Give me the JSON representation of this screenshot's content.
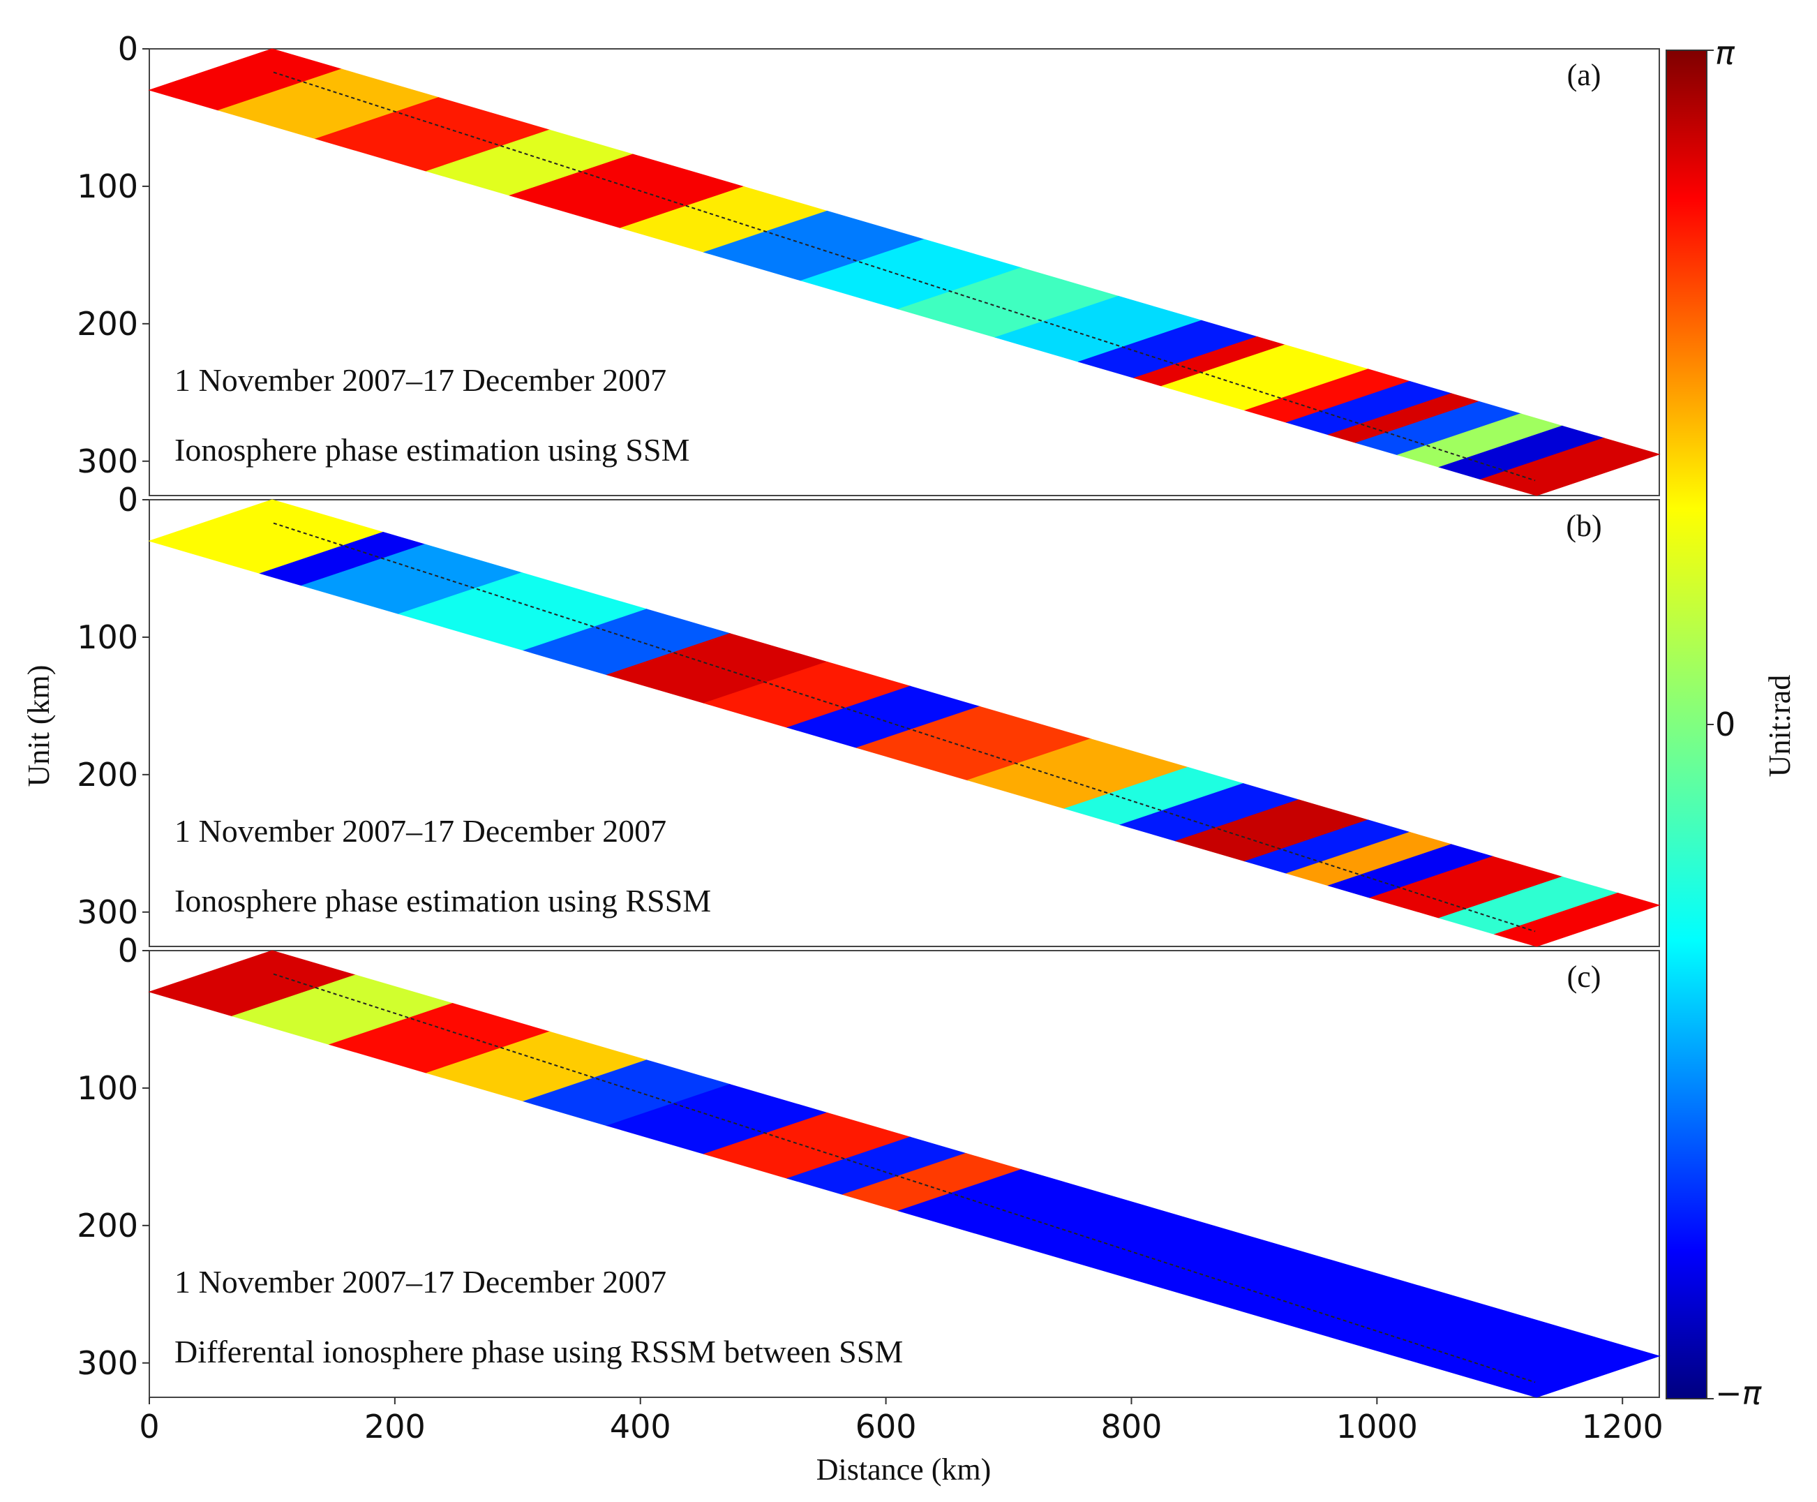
{
  "chart_data": {
    "type": "heatmap",
    "xlabel": "Distance (km)",
    "ylabel": "Unit (km)",
    "xlim": [
      0,
      1230
    ],
    "ylim": [
      0,
      325
    ],
    "x_ticks": [
      "0",
      "200",
      "400",
      "600",
      "800",
      "1000",
      "1200"
    ],
    "y_ticks": [
      "0",
      "100",
      "200",
      "300"
    ],
    "colorbar": {
      "label": "Unit:rad",
      "ticks": [
        "π",
        "0",
        "−π"
      ],
      "range": [
        -3.14159,
        3.14159
      ],
      "colormap": "jet"
    },
    "panels": [
      {
        "id": "a",
        "tag": "(a)",
        "date_text": "1 November 2007–17 December 2007",
        "caption": "Ionosphere phase estimation using SSM",
        "swath_corners_km": [
          [
            100,
            0
          ],
          [
            1230,
            295
          ],
          [
            1130,
            325
          ],
          [
            0,
            30
          ]
        ],
        "phase_segments": [
          {
            "from": 0.0,
            "to": 0.05,
            "value": 2.4
          },
          {
            "from": 0.05,
            "to": 0.12,
            "value": 1.2
          },
          {
            "from": 0.12,
            "to": 0.2,
            "value": 2.2
          },
          {
            "from": 0.2,
            "to": 0.26,
            "value": 0.6
          },
          {
            "from": 0.26,
            "to": 0.34,
            "value": 2.4
          },
          {
            "from": 0.34,
            "to": 0.4,
            "value": 0.9
          },
          {
            "from": 0.4,
            "to": 0.47,
            "value": -1.6
          },
          {
            "from": 0.47,
            "to": 0.54,
            "value": -0.9
          },
          {
            "from": 0.54,
            "to": 0.61,
            "value": -0.4
          },
          {
            "from": 0.61,
            "to": 0.67,
            "value": -1.0
          },
          {
            "from": 0.67,
            "to": 0.71,
            "value": -2.2
          },
          {
            "from": 0.71,
            "to": 0.73,
            "value": 2.5
          },
          {
            "from": 0.73,
            "to": 0.79,
            "value": 0.8
          },
          {
            "from": 0.79,
            "to": 0.82,
            "value": 2.3
          },
          {
            "from": 0.82,
            "to": 0.85,
            "value": -2.2
          },
          {
            "from": 0.85,
            "to": 0.87,
            "value": 2.6
          },
          {
            "from": 0.87,
            "to": 0.9,
            "value": -1.9
          },
          {
            "from": 0.9,
            "to": 0.93,
            "value": 0.2
          },
          {
            "from": 0.93,
            "to": 0.96,
            "value": -2.6
          },
          {
            "from": 0.96,
            "to": 1.0,
            "value": 2.6
          }
        ]
      },
      {
        "id": "b",
        "tag": "(b)",
        "date_text": "1 November 2007–17 December 2007",
        "caption": "Ionosphere phase estimation using RSSM",
        "swath_corners_km": [
          [
            100,
            0
          ],
          [
            1230,
            295
          ],
          [
            1130,
            325
          ],
          [
            0,
            30
          ]
        ],
        "phase_segments": [
          {
            "from": 0.0,
            "to": 0.08,
            "value": 0.8
          },
          {
            "from": 0.08,
            "to": 0.11,
            "value": -2.4
          },
          {
            "from": 0.11,
            "to": 0.18,
            "value": -1.4
          },
          {
            "from": 0.18,
            "to": 0.27,
            "value": -0.7
          },
          {
            "from": 0.27,
            "to": 0.33,
            "value": -1.8
          },
          {
            "from": 0.33,
            "to": 0.4,
            "value": 2.6
          },
          {
            "from": 0.4,
            "to": 0.46,
            "value": 2.2
          },
          {
            "from": 0.46,
            "to": 0.51,
            "value": -2.3
          },
          {
            "from": 0.51,
            "to": 0.59,
            "value": 2.0
          },
          {
            "from": 0.59,
            "to": 0.66,
            "value": 1.3
          },
          {
            "from": 0.66,
            "to": 0.7,
            "value": -0.6
          },
          {
            "from": 0.7,
            "to": 0.74,
            "value": -2.2
          },
          {
            "from": 0.74,
            "to": 0.79,
            "value": 2.7
          },
          {
            "from": 0.79,
            "to": 0.82,
            "value": -2.2
          },
          {
            "from": 0.82,
            "to": 0.85,
            "value": 1.4
          },
          {
            "from": 0.85,
            "to": 0.88,
            "value": -2.4
          },
          {
            "from": 0.88,
            "to": 0.93,
            "value": 2.5
          },
          {
            "from": 0.93,
            "to": 0.97,
            "value": -0.5
          },
          {
            "from": 0.97,
            "to": 1.0,
            "value": 2.4
          }
        ]
      },
      {
        "id": "c",
        "tag": "(c)",
        "date_text": "1 November 2007–17 December 2007",
        "caption": "Differental ionosphere phase using RSSM between SSM",
        "swath_corners_km": [
          [
            100,
            0
          ],
          [
            1230,
            295
          ],
          [
            1130,
            325
          ],
          [
            0,
            30
          ]
        ],
        "phase_segments": [
          {
            "from": 0.0,
            "to": 0.06,
            "value": 2.6
          },
          {
            "from": 0.06,
            "to": 0.13,
            "value": 0.5
          },
          {
            "from": 0.13,
            "to": 0.2,
            "value": 2.3
          },
          {
            "from": 0.2,
            "to": 0.27,
            "value": 1.1
          },
          {
            "from": 0.27,
            "to": 0.33,
            "value": -2.0
          },
          {
            "from": 0.33,
            "to": 0.4,
            "value": -2.3
          },
          {
            "from": 0.4,
            "to": 0.46,
            "value": 2.2
          },
          {
            "from": 0.46,
            "to": 0.5,
            "value": -2.2
          },
          {
            "from": 0.5,
            "to": 0.54,
            "value": 2.0
          },
          {
            "from": 0.54,
            "to": 1.0,
            "value": -2.35
          }
        ]
      }
    ]
  }
}
